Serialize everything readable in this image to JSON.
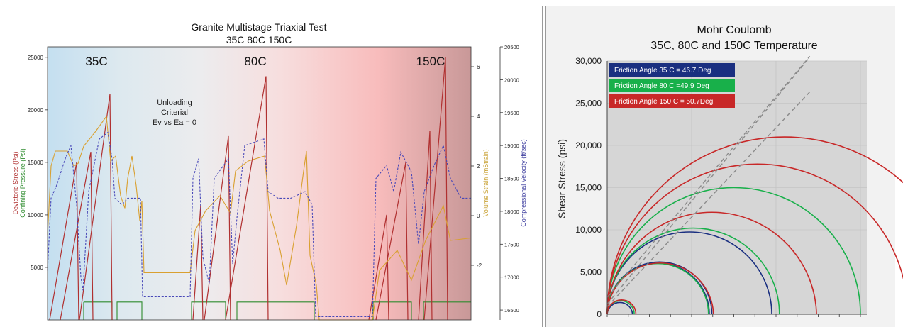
{
  "chart_data": [
    {
      "type": "line",
      "title": "Granite Multistage Triaxial Test",
      "subtitle": "35C 80C 150C",
      "temperature_labels": [
        "35C",
        "80C",
        "150C"
      ],
      "annotation": [
        "Unloading",
        "Criterial",
        "Ev vs Ea = 0"
      ],
      "left_axis": {
        "labels": [
          "Deviatoric Stress (Psi)",
          "Confining Pressure (Psi)"
        ],
        "ticks": [
          "5000",
          "10000",
          "15000",
          "20000",
          "25000"
        ],
        "range": [
          0,
          26000
        ]
      },
      "right_axis_1": {
        "label": "Volume Strain (mStrain)",
        "ticks": [
          "-2",
          "0",
          "2",
          "4",
          "6"
        ],
        "range": [
          -4.2,
          6.8
        ]
      },
      "right_axis_2": {
        "label": "Compressional Velocity (ft/sec)",
        "ticks": [
          "16500",
          "17000",
          "17500",
          "18000",
          "18500",
          "19000",
          "19500",
          "20000",
          "20500"
        ],
        "range": [
          16350,
          20500
        ]
      },
      "stage_peaks_psi": {
        "35C": [
          15000,
          16000,
          21500
        ],
        "80C": [
          11000,
          17500,
          23200
        ],
        "150C": [
          10000,
          15000,
          18000,
          25000
        ]
      },
      "colors": {
        "deviatoric": "#b03030",
        "confining": "#2e8b2e",
        "volume_strain": "#d9a030",
        "velocity": "#4848b8"
      }
    },
    {
      "type": "line",
      "title": "Mohr Coulomb",
      "subtitle": "35C, 80C and 150C Temperature",
      "ylabel": "Shear Stress (psi)",
      "ylim": [
        0,
        30000
      ],
      "y_ticks": [
        "0",
        "5,000",
        "10,000",
        "15,000",
        "20,000",
        "25,000",
        "30,000"
      ],
      "grid": true,
      "legend": [
        {
          "label": "Friction Angle 35 C = 46.7 Deg",
          "color": "#1a2f80"
        },
        {
          "label": "Friction Angle 80 C =49.9 Deg",
          "color": "#18b04a"
        },
        {
          "label": "Friction Angle 150 C = 50.7Deg",
          "color": "#c82828"
        }
      ],
      "circles": {
        "35C": [
          [
            0,
            3000
          ],
          [
            0,
            12400
          ],
          [
            0,
            12100
          ],
          [
            0,
            19500
          ]
        ],
        "80C": [
          [
            0,
            3200
          ],
          [
            0,
            12000
          ],
          [
            0,
            20400
          ],
          [
            0,
            30000
          ]
        ],
        "150C": [
          [
            0,
            3400
          ],
          [
            0,
            12600
          ],
          [
            0,
            24800
          ],
          [
            0,
            35600
          ],
          [
            0,
            42000
          ]
        ]
      },
      "envelopes": [
        {
          "name": "35C",
          "c": 900,
          "tan_phi": 1.06
        },
        {
          "name": "80C",
          "c": 2000,
          "tan_phi": 1.19
        },
        {
          "name": "150C",
          "c": 1200,
          "tan_phi": 1.22
        }
      ]
    }
  ]
}
